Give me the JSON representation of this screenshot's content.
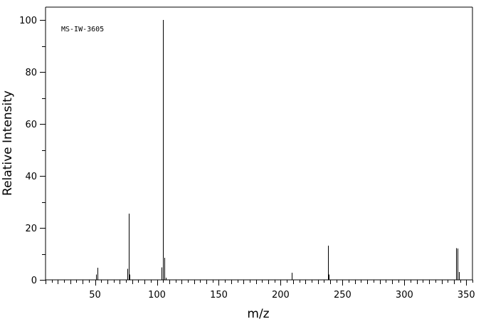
{
  "chart_data": {
    "type": "bar",
    "annotation": "MS-IW-3605",
    "xlabel": "m/z",
    "ylabel": "Relative Intensity",
    "xlim": [
      10,
      355
    ],
    "ylim": [
      0,
      105
    ],
    "xticks": [
      50,
      100,
      150,
      200,
      250,
      300,
      350
    ],
    "yticks": [
      0,
      20,
      40,
      60,
      80,
      100
    ],
    "grid": false,
    "legend": "none",
    "series": [
      {
        "peaks": [
          {
            "mz": 51,
            "intensity": 2.0
          },
          {
            "mz": 52,
            "intensity": 4.6
          },
          {
            "mz": 76,
            "intensity": 4.2
          },
          {
            "mz": 77,
            "intensity": 25.5
          },
          {
            "mz": 78,
            "intensity": 2.0
          },
          {
            "mz": 104,
            "intensity": 4.8
          },
          {
            "mz": 105,
            "intensity": 100.0
          },
          {
            "mz": 106,
            "intensity": 8.5
          },
          {
            "mz": 107,
            "intensity": 0.8
          },
          {
            "mz": 209,
            "intensity": 2.8
          },
          {
            "mz": 238,
            "intensity": 13.2
          },
          {
            "mz": 239,
            "intensity": 2.1
          },
          {
            "mz": 342,
            "intensity": 12.2
          },
          {
            "mz": 343,
            "intensity": 12.0
          },
          {
            "mz": 344,
            "intensity": 3.0
          }
        ]
      }
    ]
  }
}
